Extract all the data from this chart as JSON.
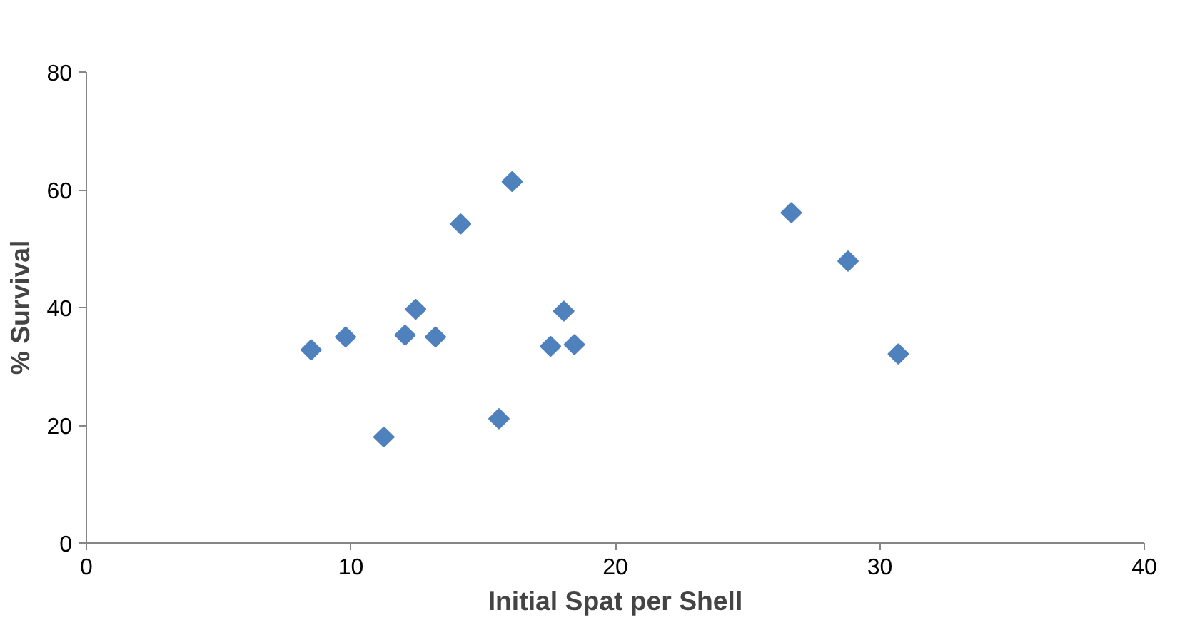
{
  "chart_data": {
    "type": "scatter",
    "xlabel": "Initial Spat per Shell",
    "ylabel": "% Survival",
    "x": [
      8.5,
      9.8,
      11.25,
      12.05,
      12.45,
      13.2,
      14.15,
      15.6,
      16.1,
      17.55,
      18.05,
      18.45,
      26.65,
      28.8,
      30.7
    ],
    "values": [
      32.8,
      35.0,
      18.0,
      35.3,
      39.7,
      35.0,
      54.2,
      21.1,
      61.4,
      33.4,
      39.4,
      33.7,
      56.1,
      47.9,
      32.1
    ],
    "color": "#4f81bd",
    "marker": "diamond",
    "xlim": [
      0,
      40
    ],
    "xticks": [
      0,
      10,
      20,
      30,
      40
    ],
    "ylim": [
      0,
      80
    ],
    "yticks": [
      0,
      20,
      40,
      60,
      80
    ],
    "grid": false
  }
}
